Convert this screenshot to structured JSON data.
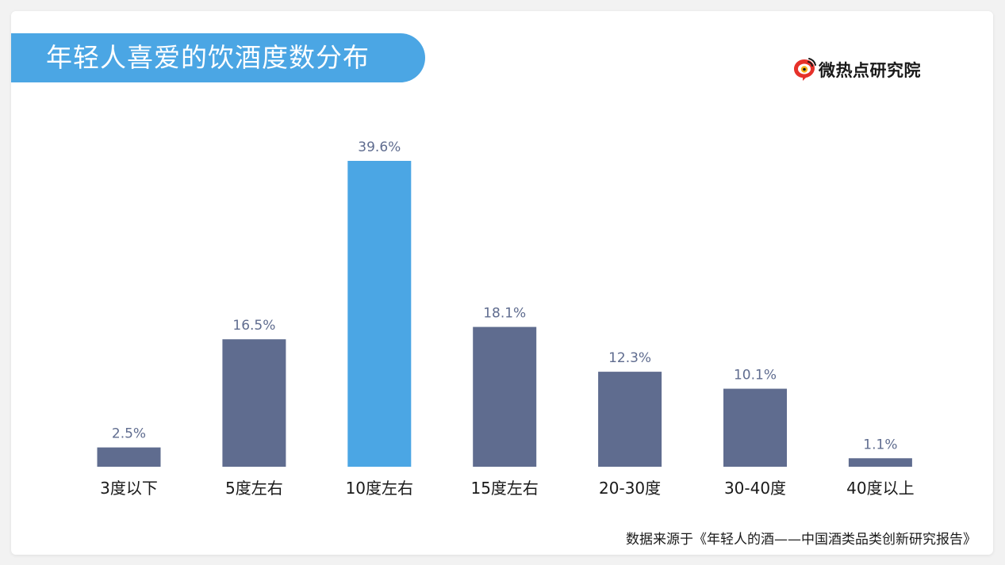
{
  "title": "年轻人喜爱的饮酒度数分布",
  "brand": {
    "name": "微热点研究院",
    "icon": "weibo-eye-icon"
  },
  "source_note": "数据来源于《年轻人的酒——中国酒类品类创新研究报告》",
  "colors": {
    "banner": "#4ba6e4",
    "bar_default": "#5f6c8f",
    "bar_highlight": "#4ba6e4",
    "label": "#5f6c8f",
    "category_text": "#1a1a1a"
  },
  "chart_data": {
    "type": "bar",
    "categories": [
      "3度以下",
      "5度左右",
      "10度左右",
      "15度左右",
      "20-30度",
      "30-40度",
      "40度以上"
    ],
    "values": [
      2.5,
      16.5,
      39.6,
      18.1,
      12.3,
      10.1,
      1.1
    ],
    "value_labels": [
      "2.5%",
      "16.5%",
      "39.6%",
      "18.1%",
      "12.3%",
      "10.1%",
      "1.1%"
    ],
    "unit": "%",
    "highlight_index": 2,
    "ylim": [
      0,
      39.6
    ],
    "grid": false,
    "legend": "none"
  }
}
